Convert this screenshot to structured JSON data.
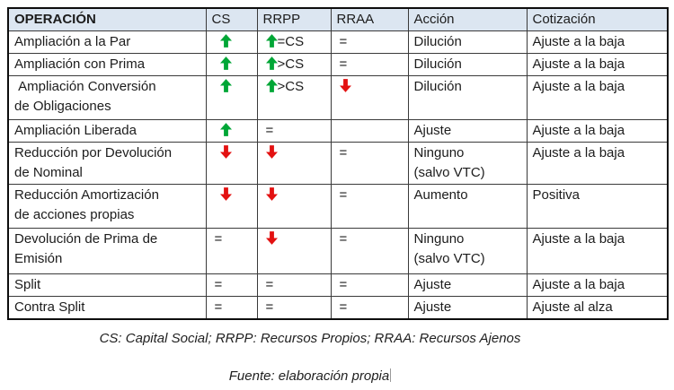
{
  "colors": {
    "header_bg": "#dce6f1",
    "outer_border": "#0d0d0d",
    "inner_border": "#3a3a3a",
    "up_arrow": "#00a636",
    "down_arrow": "#e31111",
    "text": "#1c1c1c"
  },
  "table": {
    "headers": [
      "OPERACIÓN",
      "CS",
      "RRPP",
      "RRAA",
      "Acción",
      "Cotización"
    ],
    "rows": [
      {
        "operacion": "Ampliación a la Par",
        "cs": {
          "arrow": "up",
          "text": ""
        },
        "rrpp": {
          "arrow": "up",
          "text": "=CS"
        },
        "rraa": {
          "arrow": null,
          "text": "="
        },
        "accion": "Dilución",
        "cotizacion": "Ajuste a la baja"
      },
      {
        "operacion": "Ampliación con Prima",
        "cs": {
          "arrow": "up",
          "text": ""
        },
        "rrpp": {
          "arrow": "up",
          "text": ">CS"
        },
        "rraa": {
          "arrow": null,
          "text": "="
        },
        "accion": "Dilución",
        "cotizacion": "Ajuste a la baja"
      },
      {
        "operacion": " Ampliación Conversión\nde Obligaciones",
        "cs": {
          "arrow": "up",
          "text": ""
        },
        "rrpp": {
          "arrow": "up",
          "text": ">CS"
        },
        "rraa": {
          "arrow": "down",
          "text": ""
        },
        "accion": "Dilución",
        "cotizacion": "Ajuste a la baja"
      },
      {
        "operacion": "Ampliación Liberada",
        "cs": {
          "arrow": "up",
          "text": ""
        },
        "rrpp": {
          "arrow": null,
          "text": "="
        },
        "rraa": {
          "arrow": null,
          "text": ""
        },
        "accion": "Ajuste",
        "cotizacion": "Ajuste a la baja"
      },
      {
        "operacion": "Reducción por Devolución\nde Nominal",
        "cs": {
          "arrow": "down",
          "text": ""
        },
        "rrpp": {
          "arrow": "down",
          "text": ""
        },
        "rraa": {
          "arrow": null,
          "text": "="
        },
        "accion": "Ninguno\n(salvo VTC)",
        "cotizacion": "Ajuste a la baja"
      },
      {
        "operacion": "Reducción Amortización\nde acciones propias",
        "cs": {
          "arrow": "down",
          "text": ""
        },
        "rrpp": {
          "arrow": "down",
          "text": ""
        },
        "rraa": {
          "arrow": null,
          "text": "="
        },
        "accion": "Aumento",
        "cotizacion": "Positiva"
      },
      {
        "operacion": "Devolución de Prima de\nEmisión",
        "cs": {
          "arrow": null,
          "text": "="
        },
        "rrpp": {
          "arrow": "down",
          "text": ""
        },
        "rraa": {
          "arrow": null,
          "text": "="
        },
        "accion": "Ninguno\n(salvo VTC)",
        "cotizacion": "Ajuste a la baja"
      },
      {
        "operacion": "Split",
        "cs": {
          "arrow": null,
          "text": "="
        },
        "rrpp": {
          "arrow": null,
          "text": "="
        },
        "rraa": {
          "arrow": null,
          "text": "="
        },
        "accion": "Ajuste",
        "cotizacion": "Ajuste a la baja"
      },
      {
        "operacion": "Contra Split",
        "cs": {
          "arrow": null,
          "text": "="
        },
        "rrpp": {
          "arrow": null,
          "text": "="
        },
        "rraa": {
          "arrow": null,
          "text": "="
        },
        "accion": "Ajuste",
        "cotizacion": "Ajuste al alza"
      }
    ]
  },
  "footnotes": {
    "legend": "CS: Capital Social; RRPP: Recursos Propios; RRAA: Recursos Ajenos",
    "source": "Fuente: elaboración propia"
  }
}
